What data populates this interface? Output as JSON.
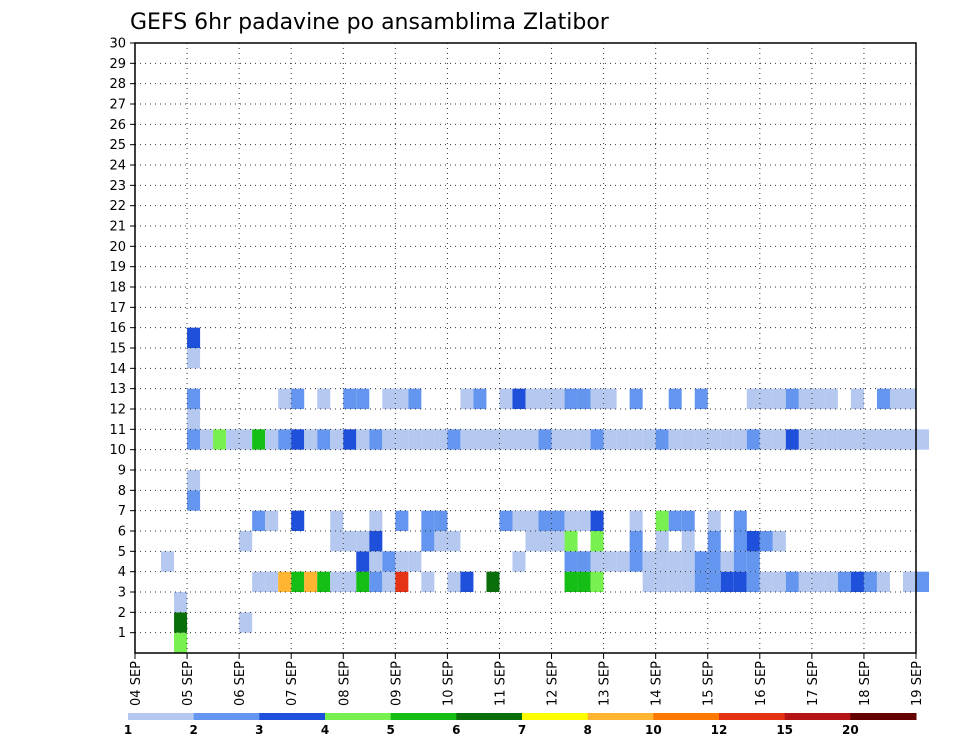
{
  "chart_data": {
    "type": "heatmap",
    "title": "GEFS 6hr padavine po ansamblima Zlatibor",
    "xlabel": "",
    "ylabel": "",
    "x_tick_labels": [
      "04 SEP",
      "05 SEP",
      "06 SEP",
      "07 SEP",
      "08 SEP",
      "09 SEP",
      "10 SEP",
      "11 SEP",
      "12 SEP",
      "13 SEP",
      "14 SEP",
      "15 SEP",
      "16 SEP",
      "17 SEP",
      "18 SEP",
      "19 SEP"
    ],
    "y_tick_labels": [
      "1",
      "2",
      "3",
      "4",
      "5",
      "6",
      "7",
      "8",
      "9",
      "10",
      "11",
      "12",
      "13",
      "14",
      "15",
      "16",
      "17",
      "18",
      "19",
      "20",
      "21",
      "22",
      "23",
      "24",
      "25",
      "26",
      "27",
      "28",
      "29",
      "30"
    ],
    "time_steps": 61,
    "members": 30,
    "grid": true,
    "legend_placement": "bottom",
    "legend": {
      "labels": [
        "1",
        "2",
        "3",
        "4",
        "5",
        "6",
        "7",
        "8",
        "10",
        "12",
        "15",
        "20"
      ],
      "colors": [
        "#b4c8f0",
        "#6496f0",
        "#1e50dc",
        "#78f050",
        "#14be14",
        "#0a6e0a",
        "#ffff00",
        "#ffb432",
        "#ff7800",
        "#e63214",
        "#b41414",
        "#640000"
      ]
    },
    "cells": [
      [
        8,
        2,
        1
      ],
      [
        4,
        8,
        2
      ],
      [
        4,
        9,
        1
      ],
      [
        4,
        12,
        1
      ],
      [
        4,
        13,
        2
      ],
      [
        4,
        15,
        1
      ],
      [
        4,
        16,
        3
      ],
      [
        3,
        1,
        4
      ],
      [
        3,
        2,
        6
      ],
      [
        3,
        3,
        1
      ],
      [
        9,
        4,
        1
      ],
      [
        10,
        4,
        1
      ],
      [
        12,
        4,
        5
      ],
      [
        11,
        4,
        8
      ],
      [
        13,
        4,
        8
      ],
      [
        14,
        4,
        5
      ],
      [
        15,
        4,
        1
      ],
      [
        16,
        4,
        1
      ],
      [
        17,
        4,
        5
      ],
      [
        18,
        4,
        2
      ],
      [
        19,
        4,
        1
      ],
      [
        20,
        4,
        10
      ],
      [
        22,
        4,
        1
      ],
      [
        24,
        4,
        1
      ],
      [
        25,
        4,
        3
      ],
      [
        27,
        4,
        6
      ],
      [
        33,
        4,
        5
      ],
      [
        34,
        4,
        5
      ],
      [
        35,
        4,
        4
      ],
      [
        39,
        4,
        1
      ],
      [
        40,
        4,
        1
      ],
      [
        41,
        4,
        1
      ],
      [
        42,
        4,
        1
      ],
      [
        43,
        4,
        2
      ],
      [
        44,
        4,
        2
      ],
      [
        45,
        4,
        3
      ],
      [
        46,
        4,
        3
      ],
      [
        47,
        4,
        2
      ],
      [
        48,
        4,
        1
      ],
      [
        49,
        4,
        1
      ],
      [
        50,
        4,
        2
      ],
      [
        51,
        4,
        1
      ],
      [
        52,
        4,
        1
      ],
      [
        53,
        4,
        1
      ],
      [
        54,
        4,
        2
      ],
      [
        55,
        4,
        3
      ],
      [
        56,
        4,
        2
      ],
      [
        57,
        4,
        1
      ],
      [
        59,
        4,
        1
      ],
      [
        60,
        4,
        2
      ],
      [
        2,
        5,
        1
      ],
      [
        17,
        5,
        3
      ],
      [
        18,
        5,
        1
      ],
      [
        19,
        5,
        2
      ],
      [
        20,
        5,
        1
      ],
      [
        21,
        5,
        1
      ],
      [
        29,
        5,
        1
      ],
      [
        33,
        5,
        2
      ],
      [
        34,
        5,
        2
      ],
      [
        35,
        5,
        1
      ],
      [
        36,
        5,
        1
      ],
      [
        37,
        5,
        1
      ],
      [
        38,
        5,
        2
      ],
      [
        39,
        5,
        1
      ],
      [
        40,
        5,
        1
      ],
      [
        41,
        5,
        1
      ],
      [
        42,
        5,
        1
      ],
      [
        43,
        5,
        2
      ],
      [
        44,
        5,
        2
      ],
      [
        45,
        5,
        1
      ],
      [
        46,
        5,
        2
      ],
      [
        47,
        5,
        2
      ],
      [
        8,
        6,
        1
      ],
      [
        15,
        6,
        1
      ],
      [
        16,
        6,
        1
      ],
      [
        17,
        6,
        1
      ],
      [
        18,
        6,
        3
      ],
      [
        22,
        6,
        2
      ],
      [
        23,
        6,
        1
      ],
      [
        24,
        6,
        1
      ],
      [
        30,
        6,
        1
      ],
      [
        31,
        6,
        1
      ],
      [
        32,
        6,
        1
      ],
      [
        33,
        6,
        4
      ],
      [
        35,
        6,
        4
      ],
      [
        38,
        6,
        2
      ],
      [
        40,
        6,
        1
      ],
      [
        42,
        6,
        1
      ],
      [
        44,
        6,
        2
      ],
      [
        46,
        6,
        2
      ],
      [
        47,
        6,
        3
      ],
      [
        48,
        6,
        2
      ],
      [
        49,
        6,
        1
      ],
      [
        9,
        7,
        2
      ],
      [
        10,
        7,
        1
      ],
      [
        12,
        7,
        3
      ],
      [
        15,
        7,
        1
      ],
      [
        18,
        7,
        1
      ],
      [
        20,
        7,
        2
      ],
      [
        22,
        7,
        2
      ],
      [
        23,
        7,
        2
      ],
      [
        28,
        7,
        2
      ],
      [
        29,
        7,
        1
      ],
      [
        30,
        7,
        1
      ],
      [
        31,
        7,
        2
      ],
      [
        32,
        7,
        2
      ],
      [
        33,
        7,
        1
      ],
      [
        34,
        7,
        1
      ],
      [
        35,
        7,
        3
      ],
      [
        38,
        7,
        1
      ],
      [
        40,
        7,
        4
      ],
      [
        41,
        7,
        2
      ],
      [
        42,
        7,
        2
      ],
      [
        44,
        7,
        1
      ],
      [
        46,
        7,
        2
      ],
      [
        4,
        11,
        2
      ],
      [
        5,
        11,
        1
      ],
      [
        6,
        11,
        4
      ],
      [
        7,
        11,
        1
      ],
      [
        8,
        11,
        1
      ],
      [
        9,
        11,
        5
      ],
      [
        10,
        11,
        1
      ],
      [
        11,
        11,
        2
      ],
      [
        12,
        11,
        3
      ],
      [
        13,
        11,
        1
      ],
      [
        14,
        11,
        2
      ],
      [
        15,
        11,
        1
      ],
      [
        16,
        11,
        3
      ],
      [
        17,
        11,
        1
      ],
      [
        18,
        11,
        2
      ],
      [
        19,
        11,
        1
      ],
      [
        20,
        11,
        1
      ],
      [
        21,
        11,
        1
      ],
      [
        22,
        11,
        1
      ],
      [
        23,
        11,
        1
      ],
      [
        24,
        11,
        2
      ],
      [
        25,
        11,
        1
      ],
      [
        26,
        11,
        1
      ],
      [
        27,
        11,
        1
      ],
      [
        28,
        11,
        1
      ],
      [
        29,
        11,
        1
      ],
      [
        30,
        11,
        1
      ],
      [
        31,
        11,
        2
      ],
      [
        32,
        11,
        1
      ],
      [
        33,
        11,
        1
      ],
      [
        34,
        11,
        1
      ],
      [
        35,
        11,
        2
      ],
      [
        36,
        11,
        1
      ],
      [
        37,
        11,
        1
      ],
      [
        38,
        11,
        1
      ],
      [
        39,
        11,
        1
      ],
      [
        40,
        11,
        2
      ],
      [
        41,
        11,
        1
      ],
      [
        42,
        11,
        1
      ],
      [
        43,
        11,
        1
      ],
      [
        44,
        11,
        1
      ],
      [
        45,
        11,
        1
      ],
      [
        46,
        11,
        1
      ],
      [
        47,
        11,
        2
      ],
      [
        48,
        11,
        1
      ],
      [
        49,
        11,
        1
      ],
      [
        50,
        11,
        3
      ],
      [
        51,
        11,
        1
      ],
      [
        52,
        11,
        1
      ],
      [
        53,
        11,
        1
      ],
      [
        54,
        11,
        1
      ],
      [
        55,
        11,
        1
      ],
      [
        56,
        11,
        1
      ],
      [
        57,
        11,
        1
      ],
      [
        58,
        11,
        1
      ],
      [
        59,
        11,
        1
      ],
      [
        60,
        11,
        1
      ],
      [
        11,
        13,
        1
      ],
      [
        12,
        13,
        2
      ],
      [
        14,
        13,
        1
      ],
      [
        16,
        13,
        2
      ],
      [
        17,
        13,
        2
      ],
      [
        19,
        13,
        1
      ],
      [
        20,
        13,
        1
      ],
      [
        21,
        13,
        2
      ],
      [
        25,
        13,
        1
      ],
      [
        26,
        13,
        2
      ],
      [
        28,
        13,
        1
      ],
      [
        29,
        13,
        3
      ],
      [
        30,
        13,
        1
      ],
      [
        31,
        13,
        1
      ],
      [
        32,
        13,
        1
      ],
      [
        33,
        13,
        2
      ],
      [
        34,
        13,
        2
      ],
      [
        35,
        13,
        1
      ],
      [
        36,
        13,
        1
      ],
      [
        38,
        13,
        2
      ],
      [
        41,
        13,
        2
      ],
      [
        43,
        13,
        2
      ],
      [
        47,
        13,
        1
      ],
      [
        48,
        13,
        1
      ],
      [
        49,
        13,
        1
      ],
      [
        50,
        13,
        2
      ],
      [
        51,
        13,
        1
      ],
      [
        52,
        13,
        1
      ],
      [
        53,
        13,
        1
      ],
      [
        55,
        13,
        1
      ],
      [
        57,
        13,
        2
      ],
      [
        58,
        13,
        1
      ],
      [
        59,
        13,
        1
      ]
    ]
  }
}
